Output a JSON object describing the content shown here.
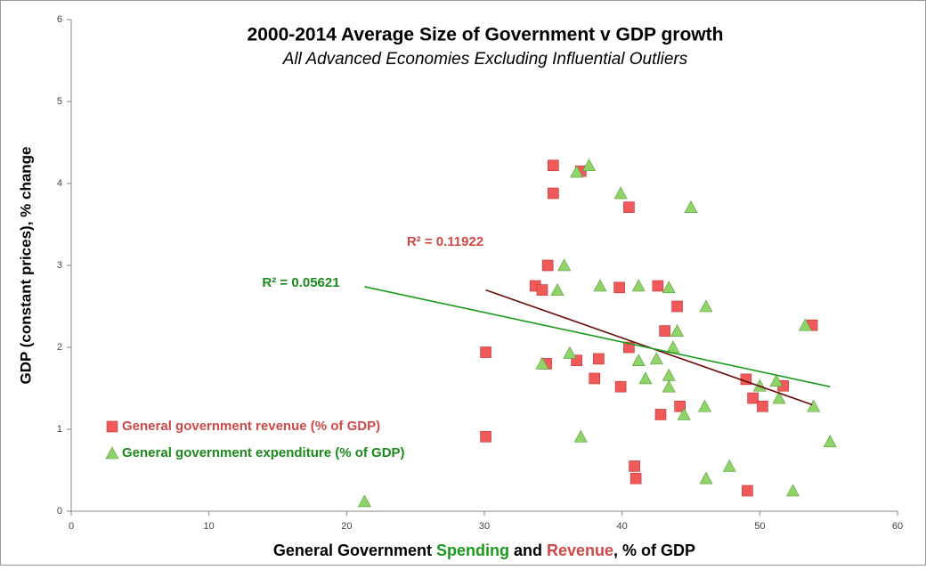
{
  "chart_data": {
    "type": "scatter",
    "title": "2000-2014 Average Size of Government v GDP growth",
    "subtitle": "All Advanced Economies Excluding Influential Outliers",
    "xlabel": [
      {
        "text": "General Government ",
        "color": "#000000"
      },
      {
        "text": "Spending",
        "color": "#1a9a1a"
      },
      {
        "text": " and ",
        "color": "#000000"
      },
      {
        "text": "Revenue",
        "color": "#d04848"
      },
      {
        "text": ", % of GDP",
        "color": "#000000"
      }
    ],
    "ylabel": "GDP (constant prices), % change",
    "xlim": [
      0,
      60
    ],
    "xticks": [
      0,
      10,
      20,
      30,
      40,
      50,
      60
    ],
    "ylim": [
      0,
      6
    ],
    "yticks": [
      0,
      1,
      2,
      3,
      4,
      5,
      6
    ],
    "series": [
      {
        "name": "General government revenue (% of GDP)",
        "color": "#f05a5a",
        "marker": "square",
        "x": [
          30.1,
          30.1,
          35.0,
          35.0,
          37.0,
          34.6,
          33.7,
          34.2,
          34.5,
          36.7,
          38.3,
          38.0,
          39.8,
          40.5,
          39.9,
          40.5,
          40.9,
          41.0,
          42.6,
          43.1,
          44.0,
          44.2,
          42.8,
          49.0,
          49.5,
          50.2,
          51.7,
          49.1,
          53.8
        ],
        "values": [
          1.94,
          0.91,
          4.22,
          3.88,
          4.15,
          3.0,
          2.75,
          2.7,
          1.8,
          1.84,
          1.86,
          1.62,
          2.73,
          3.71,
          1.52,
          2.0,
          0.55,
          0.4,
          2.75,
          2.2,
          2.5,
          1.28,
          1.18,
          1.61,
          1.38,
          1.28,
          1.53,
          0.25,
          2.27
        ]
      },
      {
        "name": "General government expenditure (% of GDP)",
        "color": "#8ed468",
        "marker": "triangle",
        "x": [
          21.3,
          34.2,
          35.8,
          35.3,
          36.2,
          36.7,
          37.6,
          37.0,
          38.4,
          39.9,
          41.2,
          41.2,
          41.7,
          42.5,
          43.4,
          43.7,
          44.0,
          43.4,
          43.4,
          44.5,
          45.0,
          46.1,
          46.0,
          46.1,
          47.8,
          50.0,
          51.2,
          51.4,
          52.4,
          53.3,
          53.9,
          55.1
        ],
        "values": [
          0.12,
          1.8,
          3.0,
          2.7,
          1.93,
          4.14,
          4.22,
          0.91,
          2.75,
          3.88,
          2.75,
          1.84,
          1.62,
          1.86,
          2.73,
          2.0,
          2.2,
          1.66,
          1.52,
          1.18,
          3.71,
          2.5,
          1.28,
          0.4,
          0.55,
          1.53,
          1.59,
          1.38,
          0.25,
          2.27,
          1.28,
          0.85
        ]
      }
    ],
    "trendlines": [
      {
        "x": [
          30.1,
          53.8
        ],
        "values": [
          2.7,
          1.3
        ],
        "color": "#6b0d0d",
        "label": "R² = 0.11922",
        "label_color": "#d04848"
      },
      {
        "x": [
          21.3,
          55.1
        ],
        "values": [
          2.74,
          1.52
        ],
        "color": "#1a9a1a",
        "label": "R² = 0.05621",
        "label_color": "#1a8a1a"
      }
    ]
  }
}
